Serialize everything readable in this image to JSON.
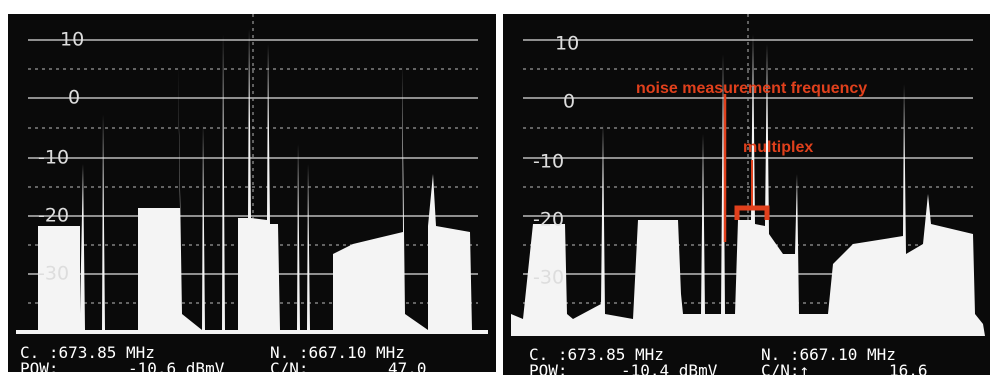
{
  "panels": [
    {
      "yticks": [
        "10",
        "0",
        "-10",
        "-20",
        "-30"
      ],
      "status": {
        "center": "C. :673.85 MHz",
        "noise": "N. :667.10 MHz",
        "pow_label": "POW:",
        "pow": "-10.6 dBmV",
        "cn_label": "C/N:",
        "cn": "47.0"
      }
    },
    {
      "yticks": [
        "10",
        "0",
        "-10",
        "-20",
        "-30"
      ],
      "annotations": [
        "noise measurement frequency",
        "multiplex"
      ],
      "status": {
        "center": "C. :673.85 MHz",
        "noise": "N. :667.10 MHz",
        "pow_label": "POW:",
        "pow": "-10.4 dBmV",
        "cn_label": "C/N:↑",
        "cn": "16.6"
      }
    }
  ]
}
